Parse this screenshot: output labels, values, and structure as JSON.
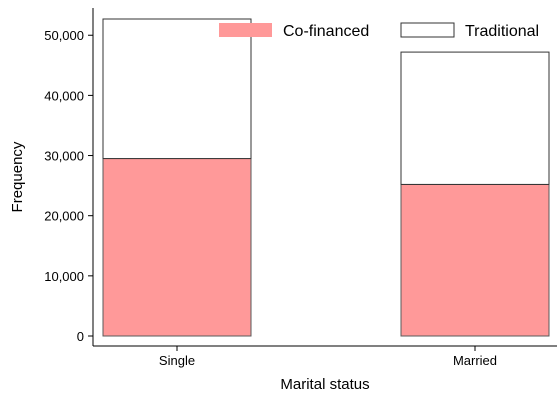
{
  "chart_data": {
    "type": "bar",
    "stacked": true,
    "categories": [
      "Single",
      "Married"
    ],
    "series": [
      {
        "name": "Co-financed",
        "values": [
          29500,
          25200
        ],
        "color": "#ff9999"
      },
      {
        "name": "Traditional",
        "values": [
          23200,
          22000
        ],
        "color": "#ffffff"
      }
    ],
    "xlabel": "Marital status",
    "ylabel": "Frequency",
    "ylim": [
      0,
      52700
    ],
    "yticks": [
      0,
      10000,
      20000,
      30000,
      40000,
      50000
    ],
    "ytick_labels": [
      "0",
      "10,000",
      "20,000",
      "30,000",
      "40,000",
      "50,000"
    ],
    "legend_position": "top-right",
    "grid": false
  }
}
